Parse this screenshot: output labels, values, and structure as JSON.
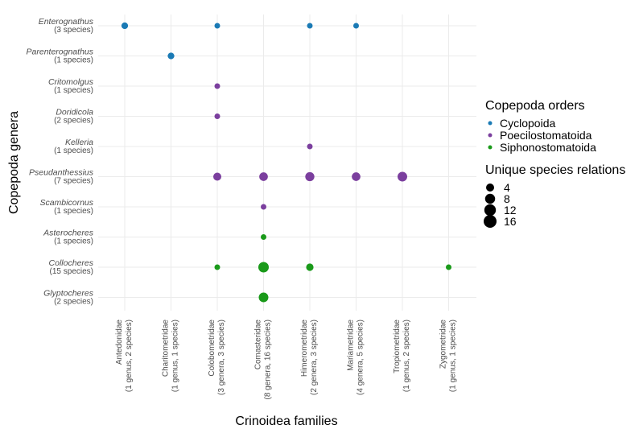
{
  "chart_data": {
    "type": "scatter",
    "xlabel": "Crinoidea families",
    "ylabel": "Copepoda genera",
    "grid": true,
    "legend_position": "right",
    "x_categories": [
      {
        "name": "Antedonidae",
        "sub": "(1 genus, 2 species)"
      },
      {
        "name": "Charitometridae",
        "sub": "(1 genus, 1 species)"
      },
      {
        "name": "Colobometridae",
        "sub": "(3 genera, 3 species)"
      },
      {
        "name": "Comasteridae",
        "sub": "(8 genera, 16 species)"
      },
      {
        "name": "Himerometridae",
        "sub": "(2 genera, 3 species)"
      },
      {
        "name": "Mariametridae",
        "sub": "(4 genera, 5 species)"
      },
      {
        "name": "Tropiometridae",
        "sub": "(1 genus, 2 species)"
      },
      {
        "name": "Zygometridae",
        "sub": "(1 genus, 1 species)"
      }
    ],
    "y_categories": [
      {
        "name": "Enterognathus",
        "sub": "(3 species)"
      },
      {
        "name": "Parenterognathus",
        "sub": "(1 species)"
      },
      {
        "name": "Critomolgus",
        "sub": "(1 species)"
      },
      {
        "name": "Doridicola",
        "sub": "(2 species)"
      },
      {
        "name": "Kelleria",
        "sub": "(1 species)"
      },
      {
        "name": "Pseudanthessius",
        "sub": "(7 species)"
      },
      {
        "name": "Scambicornus",
        "sub": "(1 species)"
      },
      {
        "name": "Asterocheres",
        "sub": "(1 species)"
      },
      {
        "name": "Collocheres",
        "sub": "(15 species)"
      },
      {
        "name": "Glyptocheres",
        "sub": "(2 species)"
      }
    ],
    "points": [
      {
        "x": "Antedonidae",
        "y": "Enterognathus",
        "size": 2,
        "order": "Cyclopoida"
      },
      {
        "x": "Colobometridae",
        "y": "Enterognathus",
        "size": 1,
        "order": "Cyclopoida"
      },
      {
        "x": "Himerometridae",
        "y": "Enterognathus",
        "size": 1,
        "order": "Cyclopoida"
      },
      {
        "x": "Mariametridae",
        "y": "Enterognathus",
        "size": 1,
        "order": "Cyclopoida"
      },
      {
        "x": "Charitometridae",
        "y": "Parenterognathus",
        "size": 2,
        "order": "Cyclopoida"
      },
      {
        "x": "Colobometridae",
        "y": "Critomolgus",
        "size": 1,
        "order": "Poecilostomatoida"
      },
      {
        "x": "Colobometridae",
        "y": "Doridicola",
        "size": 1,
        "order": "Poecilostomatoida"
      },
      {
        "x": "Himerometridae",
        "y": "Kelleria",
        "size": 1,
        "order": "Poecilostomatoida"
      },
      {
        "x": "Colobometridae",
        "y": "Pseudanthessius",
        "size": 4,
        "order": "Poecilostomatoida"
      },
      {
        "x": "Comasteridae",
        "y": "Pseudanthessius",
        "size": 5,
        "order": "Poecilostomatoida"
      },
      {
        "x": "Himerometridae",
        "y": "Pseudanthessius",
        "size": 6,
        "order": "Poecilostomatoida"
      },
      {
        "x": "Mariametridae",
        "y": "Pseudanthessius",
        "size": 5,
        "order": "Poecilostomatoida"
      },
      {
        "x": "Tropiometridae",
        "y": "Pseudanthessius",
        "size": 7,
        "order": "Poecilostomatoida"
      },
      {
        "x": "Comasteridae",
        "y": "Scambicornus",
        "size": 1,
        "order": "Poecilostomatoida"
      },
      {
        "x": "Comasteridae",
        "y": "Asterocheres",
        "size": 1,
        "order": "Siphonostomatoida"
      },
      {
        "x": "Colobometridae",
        "y": "Collocheres",
        "size": 1,
        "order": "Siphonostomatoida"
      },
      {
        "x": "Comasteridae",
        "y": "Collocheres",
        "size": 9,
        "order": "Siphonostomatoida"
      },
      {
        "x": "Himerometridae",
        "y": "Collocheres",
        "size": 3,
        "order": "Siphonostomatoida"
      },
      {
        "x": "Zygometridae",
        "y": "Collocheres",
        "size": 1,
        "order": "Siphonostomatoida"
      },
      {
        "x": "Comasteridae",
        "y": "Glyptocheres",
        "size": 7,
        "order": "Siphonostomatoida"
      }
    ],
    "legend_color": {
      "title": "Copepoda orders",
      "items": [
        {
          "label": "Cyclopoida",
          "color": "#1a7ab5"
        },
        {
          "label": "Poecilostomatoida",
          "color": "#7b3f9e"
        },
        {
          "label": "Siphonostomatoida",
          "color": "#1a9a1a"
        }
      ]
    },
    "legend_size": {
      "title": "Unique species relations",
      "items": [
        4,
        8,
        12,
        16
      ]
    },
    "size_range": [
      0,
      16
    ]
  }
}
